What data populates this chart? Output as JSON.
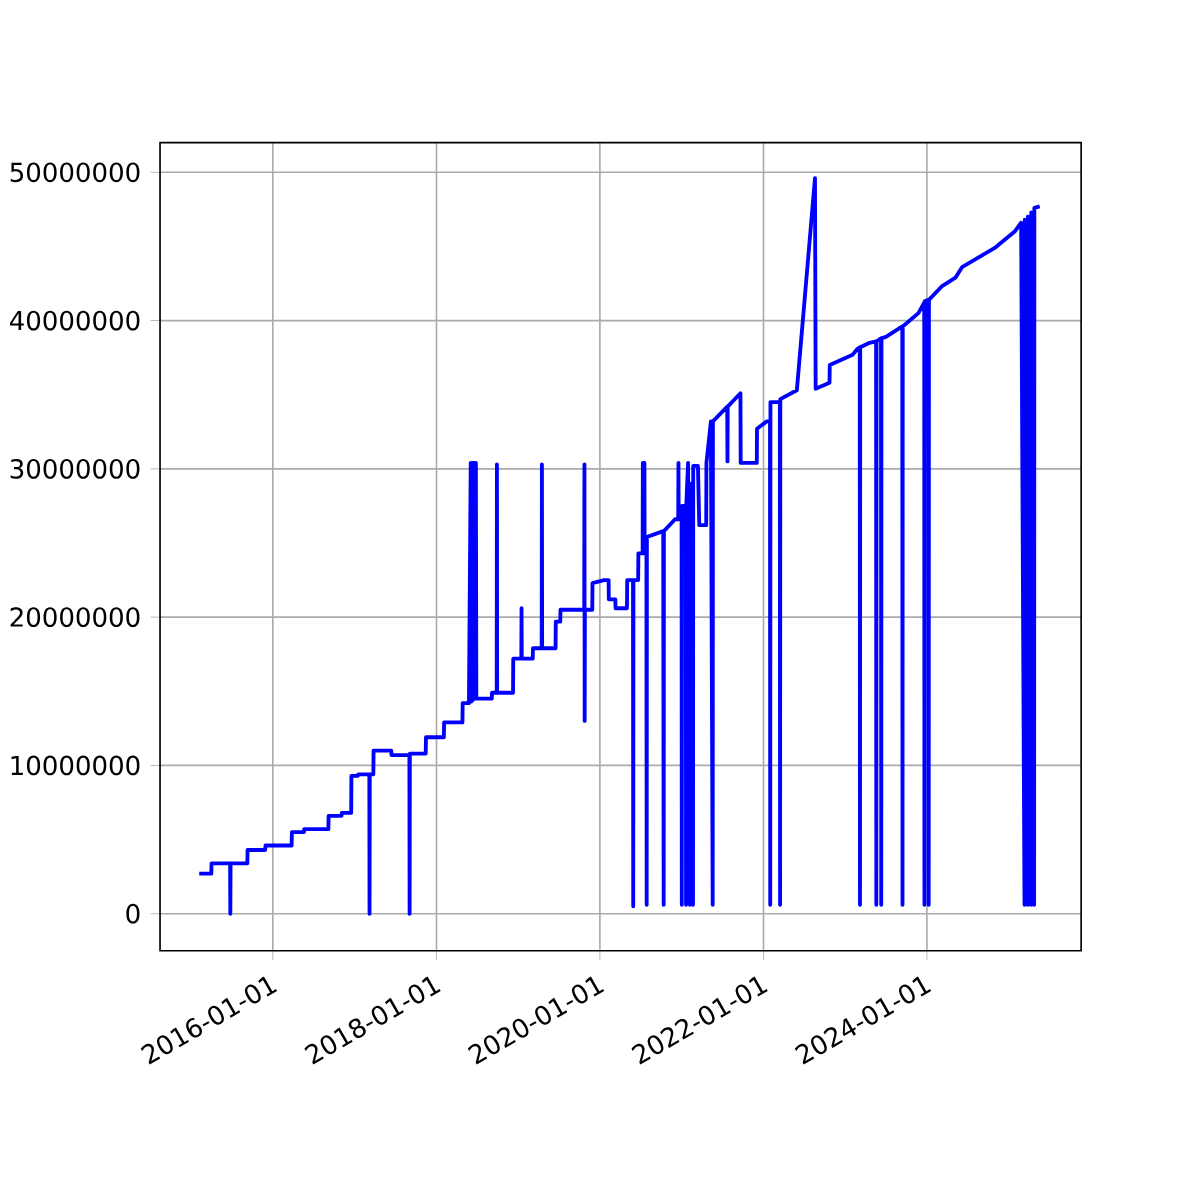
{
  "chart_data": {
    "type": "line",
    "color": "#0000ff",
    "grid": true,
    "marker": "none",
    "line_style": "solid",
    "xlim": [
      "2014-08-15",
      "2025-11-20"
    ],
    "ylim": [
      -2500000,
      52000000
    ],
    "xticks": [
      "2016-01-01",
      "2018-01-01",
      "2020-01-01",
      "2022-01-01",
      "2024-01-01"
    ],
    "yticks": [
      0,
      10000000,
      20000000,
      30000000,
      40000000,
      50000000
    ],
    "x": [
      "2015-02-06",
      "2015-04-01",
      "2015-04-02",
      "2015-06-24",
      "2015-06-25",
      "2015-06-26",
      "2015-09-09",
      "2015-09-10",
      "2015-11-28",
      "2015-11-29",
      "2016-03-25",
      "2016-03-26",
      "2016-05-19",
      "2016-05-20",
      "2016-09-05",
      "2016-09-06",
      "2016-11-03",
      "2016-11-04",
      "2016-12-16",
      "2016-12-17",
      "2017-01-15",
      "2017-01-16",
      "2017-03-07",
      "2017-03-08",
      "2017-03-09",
      "2017-03-25",
      "2017-03-26",
      "2017-06-13",
      "2017-06-14",
      "2017-09-02",
      "2017-09-03",
      "2017-09-04",
      "2017-11-14",
      "2017-11-15",
      "2018-02-03",
      "2018-02-04",
      "2018-04-27",
      "2018-04-28",
      "2018-05-26",
      "2018-06-03",
      "2018-06-05",
      "2018-06-10",
      "2018-06-12",
      "2018-06-18",
      "2018-06-20",
      "2018-06-26",
      "2018-06-28",
      "2018-09-05",
      "2018-09-06",
      "2018-09-27",
      "2018-09-28",
      "2018-09-29",
      "2018-12-09",
      "2018-12-10",
      "2019-01-15",
      "2019-01-16",
      "2019-01-17",
      "2019-03-07",
      "2019-03-08",
      "2019-04-16",
      "2019-04-17",
      "2019-04-18",
      "2019-06-17",
      "2019-06-18",
      "2019-07-08",
      "2019-07-09",
      "2019-10-23",
      "2019-10-24",
      "2019-10-25",
      "2019-10-26",
      "2019-11-28",
      "2019-11-29",
      "2020-01-20",
      "2020-02-09",
      "2020-02-10",
      "2020-03-10",
      "2020-03-11",
      "2020-05-01",
      "2020-05-02",
      "2020-05-28",
      "2020-05-29",
      "2020-05-30",
      "2020-06-20",
      "2020-06-21",
      "2020-07-10",
      "2020-07-11",
      "2020-07-12",
      "2020-07-18",
      "2020-07-19",
      "2020-07-27",
      "2020-07-28",
      "2020-07-29",
      "2020-10-10",
      "2020-10-12",
      "2020-10-13",
      "2020-12-02",
      "2020-12-16",
      "2020-12-17",
      "2020-12-18",
      "2020-12-31",
      "2021-01-01",
      "2021-01-02",
      "2021-01-19",
      "2021-01-20",
      "2021-01-21",
      "2021-01-29",
      "2021-01-30",
      "2021-02-05",
      "2021-02-06",
      "2021-02-07",
      "2021-02-20",
      "2021-02-21",
      "2021-03-14",
      "2021-03-20",
      "2021-04-20",
      "2021-04-21",
      "2021-05-11",
      "2021-05-19",
      "2021-05-20",
      "2021-07-23",
      "2021-07-24",
      "2021-07-25",
      "2021-09-20",
      "2021-09-21",
      "2021-12-02",
      "2021-12-03",
      "2022-01-15",
      "2022-01-30",
      "2022-01-31",
      "2022-02-01",
      "2022-03-15",
      "2022-03-16",
      "2022-03-17",
      "2022-05-30",
      "2022-08-19",
      "2022-08-22",
      "2022-10-23",
      "2022-10-24",
      "2023-02-03",
      "2023-02-25",
      "2023-03-07",
      "2023-03-08",
      "2023-03-09",
      "2023-04-20",
      "2023-05-19",
      "2023-05-20",
      "2023-05-21",
      "2023-06-10",
      "2023-06-11",
      "2023-06-12",
      "2023-07-02",
      "2023-09-13",
      "2023-09-14",
      "2023-09-15",
      "2023-11-24",
      "2023-12-20",
      "2023-12-21",
      "2023-12-22",
      "2024-01-08",
      "2024-01-09",
      "2024-01-10",
      "2024-03-07",
      "2024-05-08",
      "2024-06-06",
      "2024-10-30",
      "2025-01-27",
      "2025-02-25",
      "2025-03-12",
      "2025-03-13",
      "2025-03-26",
      "2025-03-27",
      "2025-04-10",
      "2025-04-11",
      "2025-04-24",
      "2025-04-25",
      "2025-05-19"
    ],
    "values": [
      2700000,
      2700000,
      3400000,
      3400000,
      0,
      3400000,
      3400000,
      4300000,
      4300000,
      4600000,
      4600000,
      5500000,
      5500000,
      5700000,
      5700000,
      6600000,
      6600000,
      6800000,
      6800000,
      9300000,
      9300000,
      9400000,
      9400000,
      0,
      9400000,
      9400000,
      11000000,
      11000000,
      10700000,
      10700000,
      0,
      10800000,
      10800000,
      11900000,
      11900000,
      12900000,
      12900000,
      14200000,
      14200000,
      30400000,
      14300000,
      30400000,
      14400000,
      30400000,
      14500000,
      30400000,
      14500000,
      14500000,
      14900000,
      14900000,
      30300000,
      14900000,
      14900000,
      17200000,
      17200000,
      20600000,
      17200000,
      17200000,
      17900000,
      17900000,
      30300000,
      17900000,
      17900000,
      19700000,
      19700000,
      20500000,
      20500000,
      30300000,
      13000000,
      20500000,
      20500000,
      22300000,
      22500000,
      22500000,
      21200000,
      21200000,
      20600000,
      20600000,
      22500000,
      22500000,
      500000,
      22500000,
      22500000,
      24300000,
      24300000,
      30400000,
      24300000,
      30400000,
      24300000,
      24300000,
      600000,
      25400000,
      25800000,
      600000,
      25800000,
      26600000,
      26600000,
      30400000,
      26600000,
      26600000,
      600000,
      27500000,
      27500000,
      600000,
      27500000,
      30400000,
      27500000,
      27500000,
      600000,
      29000000,
      600000,
      30200000,
      30200000,
      26200000,
      26200000,
      30400000,
      33200000,
      600000,
      33200000,
      34200000,
      30500000,
      34200000,
      35100000,
      30400000,
      30400000,
      32700000,
      33200000,
      33200000,
      600000,
      34500000,
      34500000,
      600000,
      34700000,
      35300000,
      49600000,
      35400000,
      35800000,
      37000000,
      37700000,
      38100000,
      38200000,
      600000,
      38200000,
      38500000,
      38600000,
      600000,
      38600000,
      38800000,
      600000,
      38800000,
      38900000,
      39600000,
      600000,
      39600000,
      40500000,
      41200000,
      600000,
      41300000,
      41400000,
      600000,
      41400000,
      42300000,
      42900000,
      43600000,
      44900000,
      46000000,
      46600000,
      600000,
      46800000,
      600000,
      47000000,
      600000,
      47300000,
      600000,
      47600000,
      47700000
    ]
  }
}
